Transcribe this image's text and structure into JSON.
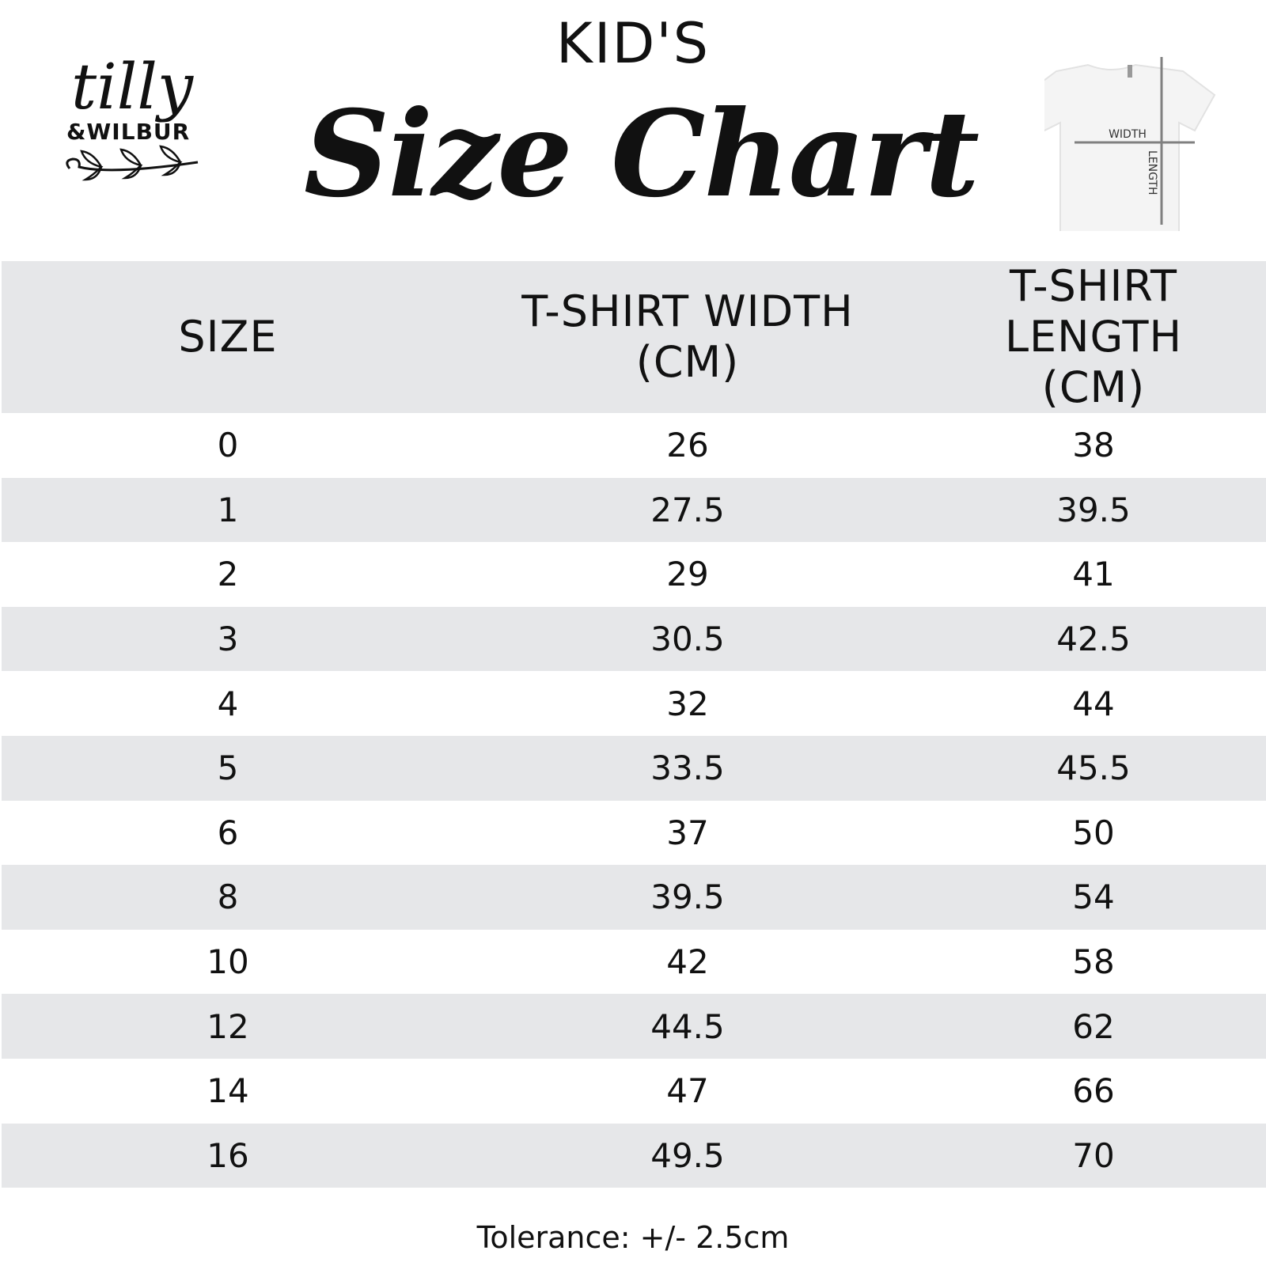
{
  "header": {
    "kicker": "KID'S",
    "title": "Size Chart"
  },
  "logo": {
    "line1": "tilly",
    "line2": "&WILBUR"
  },
  "diagram": {
    "width_label": "WIDTH",
    "length_label": "LENGTH"
  },
  "table": {
    "columns": [
      "SIZE",
      "T-SHIRT WIDTH (CM)",
      "T-SHIRT LENGTH (CM)"
    ],
    "rows": [
      [
        "0",
        "26",
        "38"
      ],
      [
        "1",
        "27.5",
        "39.5"
      ],
      [
        "2",
        "29",
        "41"
      ],
      [
        "3",
        "30.5",
        "42.5"
      ],
      [
        "4",
        "32",
        "44"
      ],
      [
        "5",
        "33.5",
        "45.5"
      ],
      [
        "6",
        "37",
        "50"
      ],
      [
        "8",
        "39.5",
        "54"
      ],
      [
        "10",
        "42",
        "58"
      ],
      [
        "12",
        "44.5",
        "62"
      ],
      [
        "14",
        "47",
        "66"
      ],
      [
        "16",
        "49.5",
        "70"
      ]
    ]
  },
  "footer": {
    "tolerance": "Tolerance: +/- 2.5cm"
  }
}
